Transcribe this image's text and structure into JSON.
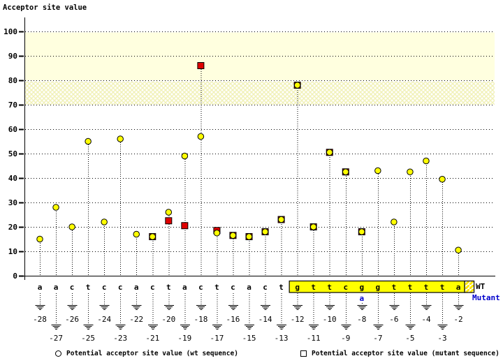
{
  "chart_data": {
    "type": "scatter",
    "title": "Acceptor site value",
    "ylabel": "Acceptor site value",
    "ylim": [
      0,
      100
    ],
    "y_ticks": [
      0,
      10,
      20,
      30,
      40,
      50,
      60,
      70,
      80,
      90,
      100
    ],
    "grid": "dotted horizontal",
    "bands": [
      {
        "from": 80,
        "to": 100,
        "style": "solid",
        "color": "#ffffdf"
      },
      {
        "from": 70,
        "to": 80,
        "style": "crosshatch",
        "color": "#f6f6c3"
      }
    ],
    "series_note": "wt = yellow circle, mut = red square; null mut = no mutant point",
    "positions": [
      {
        "pos": -28,
        "base": "a",
        "wt": 15,
        "mut": null
      },
      {
        "pos": -27,
        "base": "a",
        "wt": 28,
        "mut": null
      },
      {
        "pos": -26,
        "base": "c",
        "wt": 20,
        "mut": null
      },
      {
        "pos": -25,
        "base": "t",
        "wt": 55,
        "mut": null
      },
      {
        "pos": -24,
        "base": "c",
        "wt": 22,
        "mut": null
      },
      {
        "pos": -23,
        "base": "c",
        "wt": 56,
        "mut": null
      },
      {
        "pos": -22,
        "base": "a",
        "wt": 17,
        "mut": null
      },
      {
        "pos": -21,
        "base": "c",
        "wt": 16,
        "mut": 16
      },
      {
        "pos": -20,
        "base": "t",
        "wt": 26,
        "mut": 22.5
      },
      {
        "pos": -19,
        "base": "a",
        "wt": 49,
        "mut": 20.5
      },
      {
        "pos": -18,
        "base": "c",
        "wt": 57,
        "mut": 86
      },
      {
        "pos": -17,
        "base": "t",
        "wt": 17.5,
        "mut": 18.5
      },
      {
        "pos": -16,
        "base": "c",
        "wt": 16.5,
        "mut": 16.5
      },
      {
        "pos": -15,
        "base": "a",
        "wt": 16,
        "mut": 16
      },
      {
        "pos": -14,
        "base": "c",
        "wt": 18,
        "mut": 18
      },
      {
        "pos": -13,
        "base": "t",
        "wt": 23,
        "mut": 23
      },
      {
        "pos": -12,
        "base": "g",
        "wt": 78,
        "mut": 78
      },
      {
        "pos": -11,
        "base": "t",
        "wt": 20,
        "mut": 20
      },
      {
        "pos": -10,
        "base": "t",
        "wt": 50.5,
        "mut": 50.5
      },
      {
        "pos": -9,
        "base": "c",
        "wt": 42.5,
        "mut": 42.5
      },
      {
        "pos": -8,
        "base": "g",
        "wt": 18,
        "mut": 18
      },
      {
        "pos": -7,
        "base": "g",
        "wt": 43,
        "mut": null
      },
      {
        "pos": -6,
        "base": "t",
        "wt": 22,
        "mut": null
      },
      {
        "pos": -5,
        "base": "t",
        "wt": 42.5,
        "mut": null
      },
      {
        "pos": -4,
        "base": "t",
        "wt": 47,
        "mut": null
      },
      {
        "pos": -3,
        "base": "t",
        "wt": 39.5,
        "mut": null
      },
      {
        "pos": -2,
        "base": "a",
        "wt": 10.5,
        "mut": null
      }
    ],
    "mutation": {
      "pos": -8,
      "wt_base": "g",
      "mut_base": "a"
    },
    "sequence_box": {
      "start_pos": -12,
      "end_pos": -2,
      "fill": "#ffff00"
    },
    "colors": {
      "wt_marker": "#ffff00",
      "mut_marker": "#e00000",
      "mutant_text": "#0000cc",
      "axis": "#000000"
    },
    "row_labels": {
      "wt": "WT",
      "mutant": "Mutant"
    },
    "legend": [
      {
        "marker": "circle",
        "color": "#ffff00",
        "label": "Potential acceptor site value (wt sequence)"
      },
      {
        "marker": "square",
        "color": "#e00000",
        "label": "Potential acceptor site value (mutant sequence)"
      }
    ],
    "legend_position": "bottom"
  }
}
